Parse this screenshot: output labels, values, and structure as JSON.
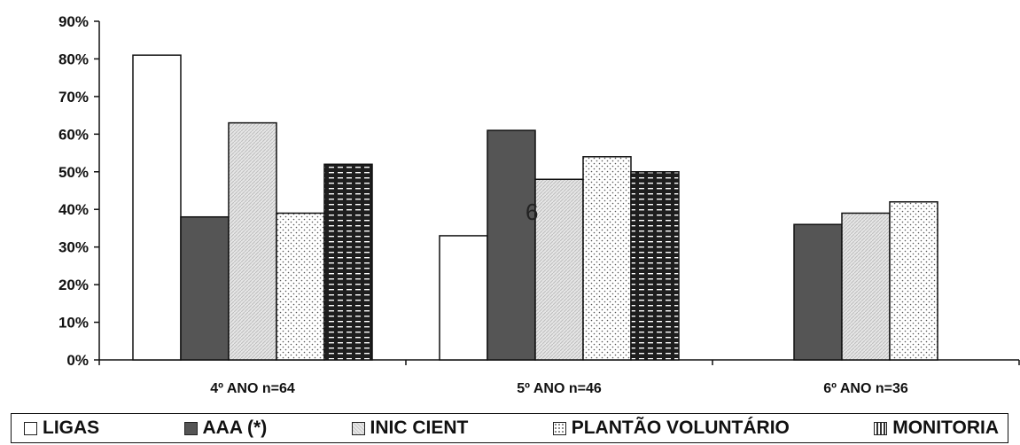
{
  "chart_data": {
    "type": "bar",
    "categories": [
      "4º ANO n=64",
      "5º ANO n=46",
      "6º ANO n=36"
    ],
    "series": [
      {
        "name": "LIGAS",
        "values": [
          81,
          33,
          null
        ]
      },
      {
        "name": "AAA (*)",
        "values": [
          38,
          61,
          36
        ]
      },
      {
        "name": "INIC CIENT",
        "values": [
          63,
          48,
          39
        ]
      },
      {
        "name": "PLANTÃO VOLUNTÁRIO",
        "values": [
          39,
          54,
          42
        ]
      },
      {
        "name": "MONITORIA",
        "values": [
          52,
          50,
          null
        ]
      }
    ],
    "y_ticks": [
      "0%",
      "10%",
      "20%",
      "30%",
      "40%",
      "50%",
      "60%",
      "70%",
      "80%",
      "90%"
    ],
    "ylim": [
      0,
      90
    ],
    "annotation": "6",
    "legend_position": "bottom",
    "colors": {
      "LIGAS": "#ffffff",
      "AAA (*)": "#555555",
      "INIC CIENT": "#d8d8d8",
      "PLANTÃO VOLUNTÁRIO": "#f4f4f4",
      "MONITORIA": "#222222"
    }
  }
}
